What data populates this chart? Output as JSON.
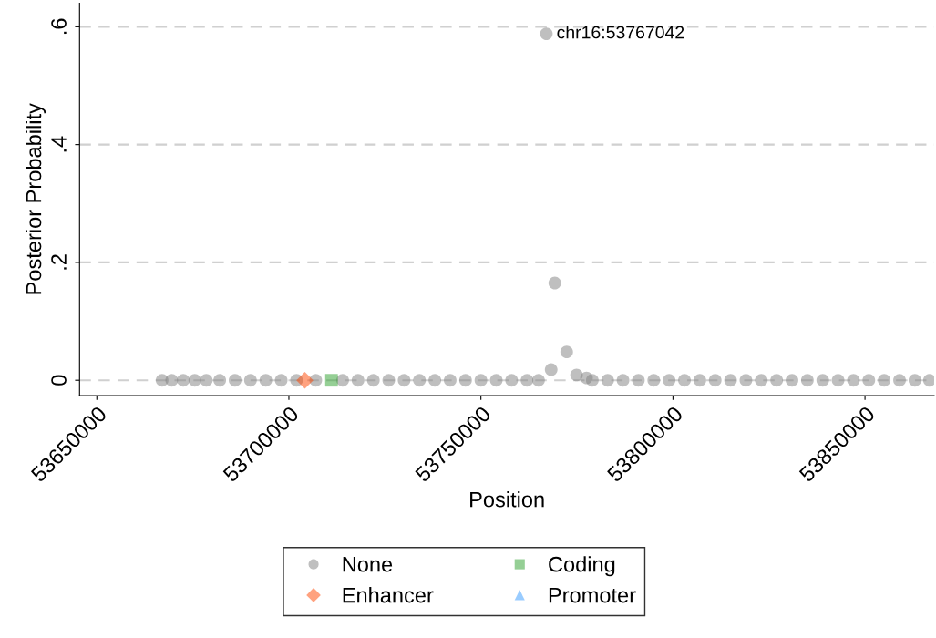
{
  "chart_data": {
    "type": "scatter",
    "xlabel": "Position",
    "ylabel": "Posterior Probability",
    "xlim": [
      53645500,
      53868000
    ],
    "ylim": [
      -0.026,
      0.64
    ],
    "xticks": [
      53650000,
      53700000,
      53750000,
      53800000,
      53850000
    ],
    "yticks": [
      {
        "value": 0,
        "label": "0"
      },
      {
        "value": 0.2,
        "label": ".2"
      },
      {
        "value": 0.4,
        "label": ".4"
      },
      {
        "value": 0.6,
        "label": ".6"
      }
    ],
    "grid": "y",
    "legend": "bottom",
    "annotations": [
      {
        "text": "chr16:53767042",
        "x": 53767042,
        "y": 0.588
      }
    ],
    "series": [
      {
        "name": "None",
        "color": "#808080",
        "marker": "circle",
        "x": [
          53667000,
          53669500,
          53672500,
          53675500,
          53678500,
          53682000,
          53686000,
          53690000,
          53694000,
          53698000,
          53702000,
          53707000,
          53714000,
          53718000,
          53722000,
          53726000,
          53730000,
          53734000,
          53738000,
          53742000,
          53746000,
          53750000,
          53754000,
          53758000,
          53762000,
          53765000,
          53767042,
          53768290,
          53769240,
          53772330,
          53774900,
          53777500,
          53779000,
          53783000,
          53787000,
          53791000,
          53795000,
          53799000,
          53803000,
          53807000,
          53811000,
          53815000,
          53819000,
          53823000,
          53827000,
          53831000,
          53835000,
          53839000,
          53843000,
          53847000,
          53851000,
          53855000,
          53859000,
          53863000,
          53866800
        ],
        "values": [
          0,
          0,
          0,
          0,
          0,
          0,
          0,
          0,
          0,
          0,
          0,
          0,
          0,
          0,
          0,
          0,
          0,
          0,
          0,
          0,
          0,
          0,
          0,
          0,
          0,
          0,
          0.588,
          0.018,
          0.165,
          0.048,
          0.009,
          0.004,
          0,
          0,
          0,
          0,
          0,
          0,
          0,
          0,
          0,
          0,
          0,
          0,
          0,
          0,
          0,
          0,
          0,
          0,
          0,
          0,
          0,
          0,
          0
        ]
      },
      {
        "name": "Enhancer",
        "color": "#ff4500",
        "marker": "diamond",
        "x": [
          53704160
        ],
        "values": [
          0
        ]
      },
      {
        "name": "Coding",
        "color": "#2ca02c",
        "marker": "square",
        "x": [
          53711100
        ],
        "values": [
          0
        ]
      },
      {
        "name": "Promoter",
        "color": "#3399ff",
        "marker": "triangle"
      }
    ]
  }
}
